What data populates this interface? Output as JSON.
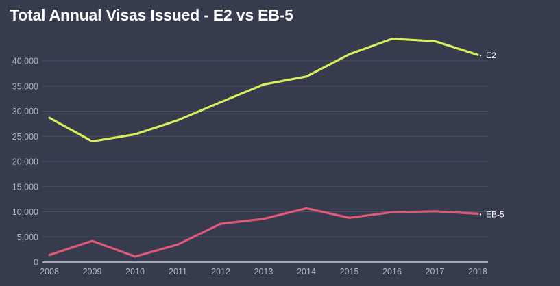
{
  "chart_data": {
    "type": "line",
    "title": "Total Annual Visas Issued - E2 vs EB-5",
    "xlabel": "",
    "ylabel": "",
    "x": [
      "2008",
      "2009",
      "2010",
      "2011",
      "2012",
      "2013",
      "2014",
      "2015",
      "2016",
      "2017",
      "2018"
    ],
    "ylim": [
      0,
      45000
    ],
    "yticks": [
      0,
      5000,
      10000,
      15000,
      20000,
      25000,
      30000,
      35000,
      40000
    ],
    "ytick_labels": [
      "0",
      "5,000",
      "10,000",
      "15,000",
      "20,000",
      "25,000",
      "30,000",
      "35,000",
      "40,000"
    ],
    "grid": true,
    "legend": "inline-right",
    "series": [
      {
        "name": "E2",
        "color": "#d8ee5a",
        "values": [
          28700,
          24000,
          25400,
          28200,
          31800,
          35300,
          36900,
          41300,
          44400,
          43900,
          41200
        ]
      },
      {
        "name": "EB-5",
        "color": "#e05a78",
        "values": [
          1400,
          4200,
          1100,
          3500,
          7600,
          8600,
          10700,
          8800,
          9900,
          10100,
          9600
        ]
      }
    ]
  }
}
